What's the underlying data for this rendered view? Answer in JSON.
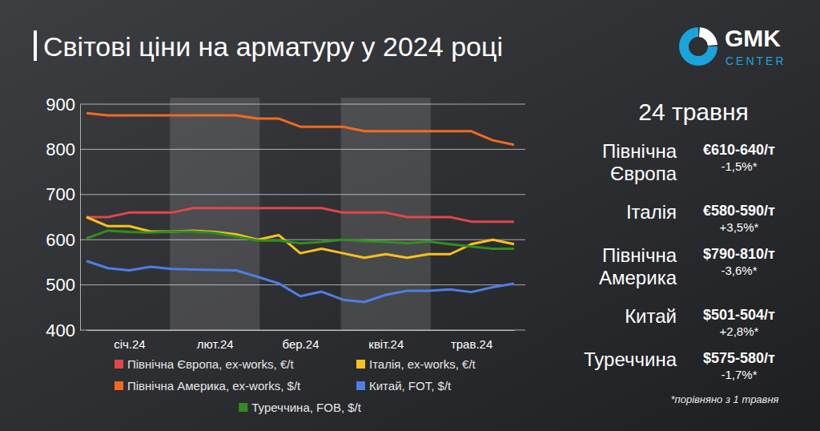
{
  "chart_data": {
    "type": "line",
    "title": "Світові ціни на арматуру у 2024 році",
    "categories": [
      null,
      null,
      "січ.24",
      null,
      null,
      null,
      "лют.24",
      null,
      null,
      null,
      "бер.24",
      null,
      null,
      null,
      "квіт.24",
      null,
      null,
      null,
      "трав.24",
      null,
      null
    ],
    "series": [
      {
        "name": "Північна Європа, ex-works, €/t",
        "color": "#e0474a",
        "values": [
          650,
          650,
          660,
          660,
          660,
          670,
          670,
          670,
          670,
          670,
          670,
          670,
          660,
          660,
          660,
          650,
          650,
          650,
          640,
          640,
          640
        ]
      },
      {
        "name": "Італія, ex-works, €/t",
        "color": "#f7c21b",
        "values": [
          650,
          630,
          630,
          618,
          618,
          620,
          617,
          612,
          600,
          610,
          570,
          580,
          570,
          560,
          568,
          560,
          568,
          568,
          590,
          600,
          590
        ]
      },
      {
        "name": "Північна Америка, ex-works, $/t",
        "color": "#f26a1f",
        "values": [
          880,
          875,
          875,
          875,
          875,
          875,
          875,
          875,
          868,
          868,
          850,
          850,
          850,
          840,
          840,
          840,
          840,
          840,
          840,
          820,
          810
        ]
      },
      {
        "name": "Китай, FOT, $/t",
        "color": "#4d7fe3",
        "values": [
          553,
          537,
          532,
          540,
          535,
          534,
          533,
          532,
          518,
          503,
          475,
          485,
          467,
          462,
          478,
          487,
          487,
          490,
          484,
          495,
          503
        ]
      },
      {
        "name": "Туреччина, FOB, $/t",
        "color": "#2f8f1f",
        "values": [
          603,
          620,
          617,
          616,
          618,
          618,
          615,
          607,
          598,
          598,
          592,
          595,
          600,
          597,
          595,
          592,
          596,
          590,
          585,
          580,
          580
        ]
      }
    ],
    "ylim": [
      400,
      900
    ],
    "yticks": [
      400,
      500,
      600,
      700,
      800,
      900
    ],
    "grid": true,
    "legend": "bottom"
  },
  "header": {
    "logo_name": "GMK",
    "logo_subtitle": "CENTER"
  },
  "side_panel": {
    "date": "24 травня",
    "rows": [
      {
        "region": "Північна Європа",
        "price": "€610-640/т",
        "change": "-1,5%*"
      },
      {
        "region": "Італія",
        "price": "€580-590/т",
        "change": "+3,5%*"
      },
      {
        "region": "Північна Америка",
        "price": "$790-810/т",
        "change": "-3,6%*"
      },
      {
        "region": "Китай",
        "price": "$501-504/т",
        "change": "+2,8%*"
      },
      {
        "region": "Туреччина",
        "price": "$575-580/т",
        "change": "-1,7%*"
      }
    ],
    "note": "*порівняно з 1 травня"
  }
}
